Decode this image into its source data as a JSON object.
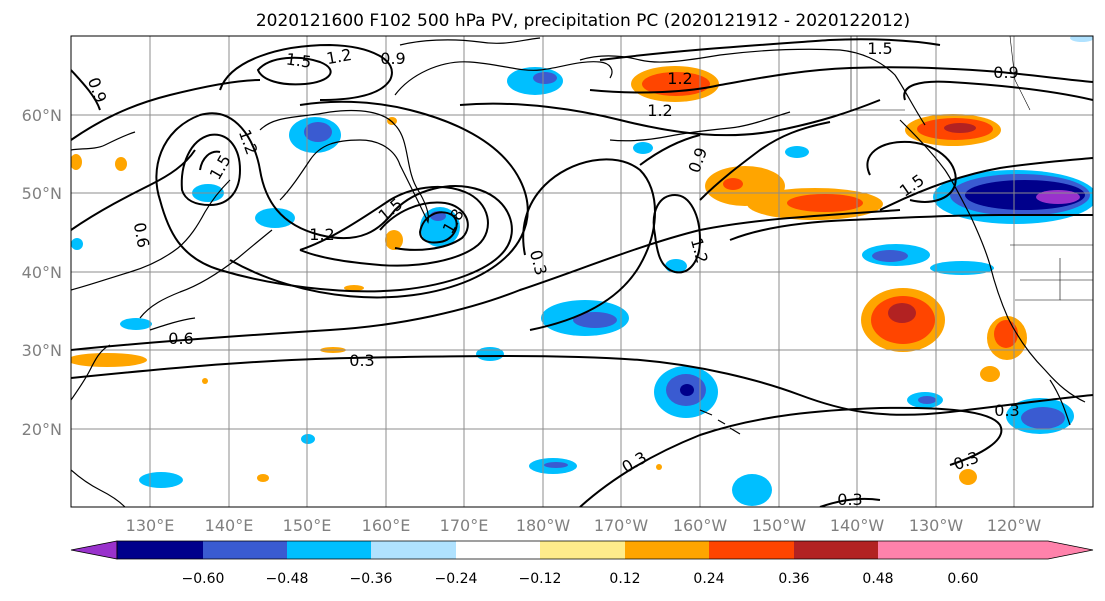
{
  "title": "2020121600 F102 500 hPa PV, precipitation PC (2020121912 - 2020122012)",
  "lat_labels": [
    "60°N",
    "50°N",
    "40°N",
    "30°N",
    "20°N"
  ],
  "lon_labels": [
    "130°E",
    "140°E",
    "150°E",
    "160°E",
    "170°E",
    "180°W",
    "170°W",
    "160°W",
    "150°W",
    "140°W",
    "130°W",
    "120°W"
  ],
  "colorbar": {
    "ticks": [
      "−0.60",
      "−0.48",
      "−0.36",
      "−0.24",
      "−0.12",
      "0.12",
      "0.24",
      "0.36",
      "0.48",
      "0.60"
    ],
    "colors": [
      "#9932cc",
      "#00008b",
      "#3a5bd1",
      "#00bfff",
      "#b0e2ff",
      "#ffffff",
      "#ffec8b",
      "#ffa500",
      "#ff4500",
      "#b22222",
      "#ff82ab"
    ]
  },
  "contour_labels": [
    "1.5",
    "1.2",
    "0.9",
    "0.9",
    "1.2",
    "1.5",
    "1.2",
    "1.5",
    "0.6",
    "1.2",
    "1.5",
    "1.8",
    "0.3",
    "1.2",
    "0.9",
    "1.5",
    "0.9",
    "1.2",
    "0.6",
    "0.3",
    "0.3",
    "0.3",
    "0.3",
    "0.3"
  ]
}
